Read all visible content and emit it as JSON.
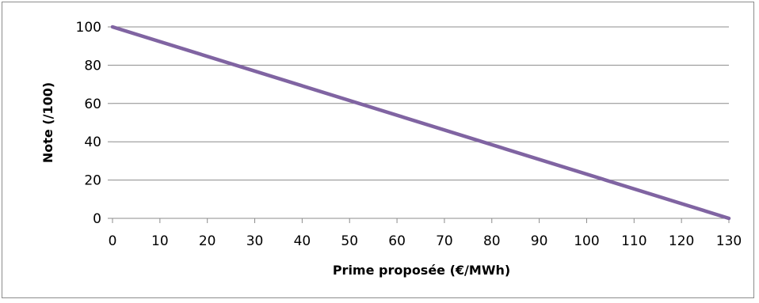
{
  "chart_data": {
    "type": "line",
    "title": "",
    "xlabel": "Prime proposée (€/MWh)",
    "ylabel": "Note (/100)",
    "xlim": [
      0,
      130
    ],
    "ylim": [
      0,
      100
    ],
    "x_ticks": [
      "0",
      "10",
      "20",
      "30",
      "40",
      "50",
      "60",
      "70",
      "80",
      "90",
      "100",
      "110",
      "120",
      "130"
    ],
    "y_ticks": [
      "0",
      "20",
      "40",
      "60",
      "80",
      "100"
    ],
    "grid": "horizontal",
    "legend": "none",
    "series": [
      {
        "color": "#8064a2",
        "x": [
          0,
          130
        ],
        "y": [
          100,
          0
        ]
      }
    ]
  }
}
